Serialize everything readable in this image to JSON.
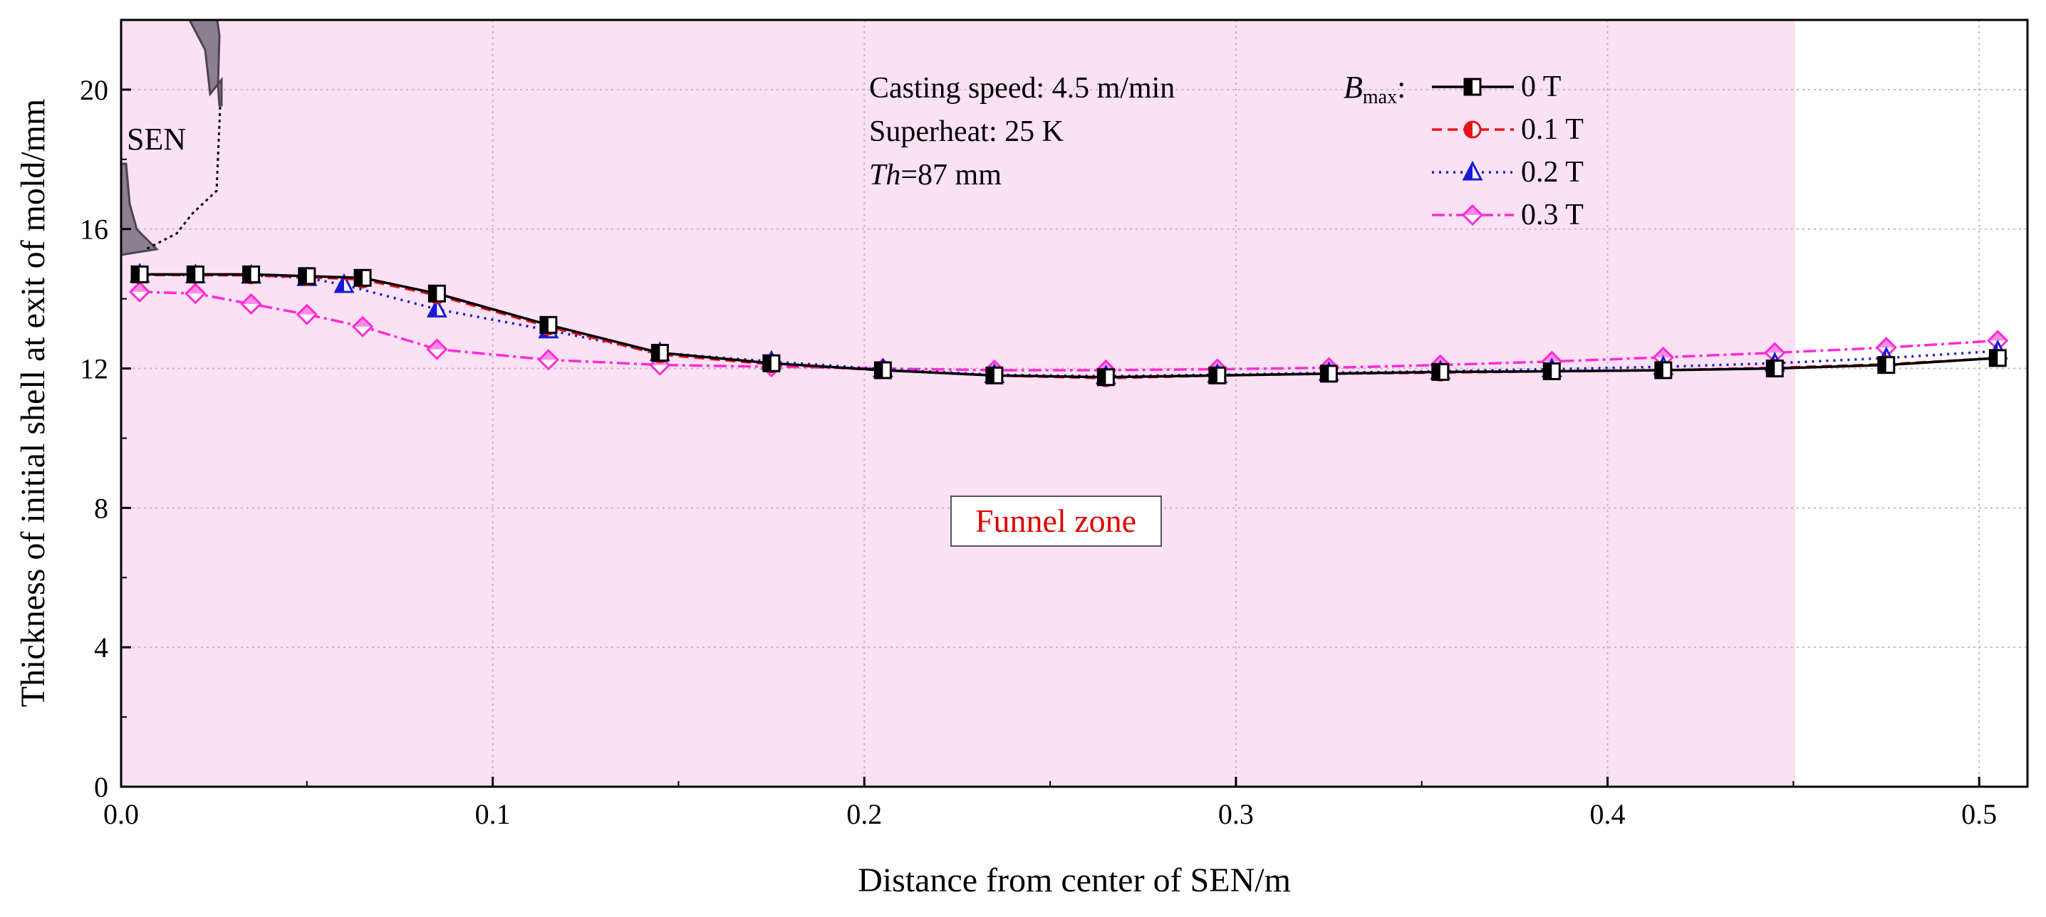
{
  "chart_data": {
    "type": "line",
    "xlabel": "Distance from center of SEN/m",
    "ylabel": "Thickness of initial shell at exit of mold/mm",
    "xlim": [
      0,
      0.513
    ],
    "ylim": [
      0,
      22
    ],
    "x_ticks": [
      "0.0",
      "0.1",
      "0.2",
      "0.3",
      "0.4",
      "0.5"
    ],
    "y_ticks": [
      "0",
      "4",
      "8",
      "12",
      "16",
      "20"
    ],
    "grid": true,
    "funnel_zone": {
      "label": "Funnel zone",
      "x_end": 0.4505
    },
    "sen": {
      "label": "SEN"
    },
    "annotations": {
      "casting_speed": "Casting speed: 4.5 m/min",
      "superheat": "Superheat: 25 K",
      "th_var": "Th",
      "th_rest": "=87 mm"
    },
    "legend": {
      "title_main": "B",
      "title_sub": "max",
      "title_colon": ":",
      "placement": "top-right"
    },
    "series": [
      {
        "name": "0 T",
        "color": "#000000",
        "dash": "",
        "marker": "square-half",
        "x": [
          0.005,
          0.02,
          0.035,
          0.05,
          0.065,
          0.085,
          0.115,
          0.145,
          0.175,
          0.205,
          0.235,
          0.265,
          0.295,
          0.325,
          0.355,
          0.385,
          0.415,
          0.445,
          0.475,
          0.505
        ],
        "y": [
          14.7,
          14.7,
          14.7,
          14.65,
          14.6,
          14.15,
          13.25,
          12.45,
          12.15,
          11.95,
          11.8,
          11.75,
          11.8,
          11.85,
          11.9,
          11.92,
          11.95,
          12.0,
          12.1,
          12.3
        ]
      },
      {
        "name": "0.1 T",
        "color": "#e8141b",
        "dash": "14,8",
        "marker": "circle-half",
        "x": [
          0.005,
          0.02,
          0.035,
          0.05,
          0.065,
          0.085,
          0.115,
          0.145,
          0.175,
          0.205,
          0.235,
          0.265,
          0.295,
          0.325,
          0.355,
          0.385,
          0.415,
          0.445,
          0.475,
          0.505
        ],
        "y": [
          14.68,
          14.68,
          14.67,
          14.62,
          14.55,
          14.1,
          13.2,
          12.4,
          12.12,
          11.95,
          11.8,
          11.72,
          11.8,
          11.85,
          11.88,
          11.92,
          11.95,
          12.02,
          12.12,
          12.3
        ]
      },
      {
        "name": "0.2 T",
        "color": "#1a1ad6",
        "dash": "3,7",
        "marker": "triangle-half",
        "x": [
          0.005,
          0.02,
          0.035,
          0.05,
          0.06,
          0.085,
          0.115,
          0.145,
          0.175,
          0.205,
          0.235,
          0.265,
          0.295,
          0.325,
          0.355,
          0.385,
          0.415,
          0.445,
          0.475,
          0.505
        ],
        "y": [
          14.7,
          14.68,
          14.67,
          14.6,
          14.4,
          13.7,
          13.1,
          12.45,
          12.2,
          11.98,
          11.82,
          11.78,
          11.82,
          11.88,
          11.92,
          11.98,
          12.05,
          12.15,
          12.3,
          12.5
        ]
      },
      {
        "name": "0.3 T",
        "color": "#ff2bd4",
        "dash": "18,6,4,6",
        "marker": "diamond-half",
        "x": [
          0.005,
          0.02,
          0.035,
          0.05,
          0.065,
          0.085,
          0.115,
          0.145,
          0.175,
          0.205,
          0.235,
          0.265,
          0.295,
          0.325,
          0.355,
          0.385,
          0.415,
          0.445,
          0.475,
          0.505
        ],
        "y": [
          14.2,
          14.15,
          13.85,
          13.55,
          13.2,
          12.55,
          12.25,
          12.1,
          12.05,
          12.0,
          11.95,
          11.95,
          11.98,
          12.02,
          12.1,
          12.2,
          12.32,
          12.45,
          12.6,
          12.8
        ]
      }
    ]
  }
}
